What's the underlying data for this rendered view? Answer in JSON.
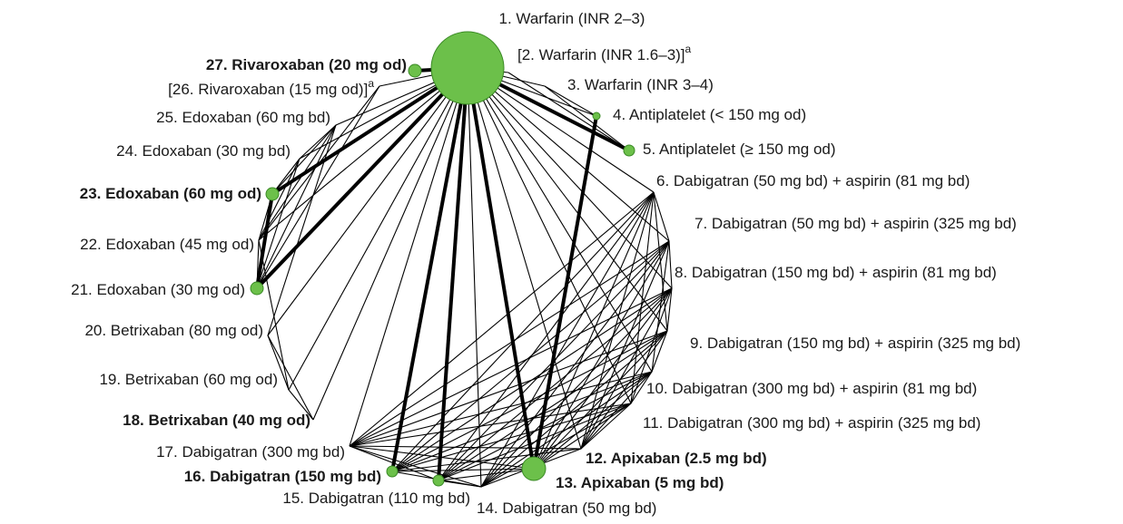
{
  "nodes": [
    {
      "label": "1. Warfarin (INR 2–3)"
    },
    {
      "label": "[2. Warfarin (INR 1.6–3)]",
      "superscript": "a"
    },
    {
      "label": "3. Warfarin (INR 3–4)"
    },
    {
      "label": "4. Antiplatelet (< 150 mg od)"
    },
    {
      "label": "5. Antiplatelet (≥ 150 mg od)"
    },
    {
      "label": "6. Dabigatran (50 mg bd) + aspirin (81 mg bd)"
    },
    {
      "label": "7. Dabigatran (50 mg bd) + aspirin (325 mg bd)"
    },
    {
      "label": "8. Dabigatran (150 mg bd) + aspirin (81 mg bd)"
    },
    {
      "label": "9. Dabigatran (150 mg bd) + aspirin (325 mg bd)"
    },
    {
      "label": "10. Dabigatran (300 mg bd) + aspirin (81 mg bd)"
    },
    {
      "label": "11. Dabigatran (300 mg bd) + aspirin (325 mg bd)"
    },
    {
      "label": "12. Apixaban (2.5 mg bd)",
      "bold": true
    },
    {
      "label": "13. Apixaban (5 mg bd)",
      "bold": true
    },
    {
      "label": "14. Dabigatran (50 mg bd)"
    },
    {
      "label": "15. Dabigatran (110 mg bd)"
    },
    {
      "label": "16. Dabigatran (150 mg bd)",
      "bold": true
    },
    {
      "label": "17. Dabigatran (300 mg bd)"
    },
    {
      "label": "18. Betrixaban (40 mg od)",
      "bold": true
    },
    {
      "label": "19. Betrixaban (60 mg od)"
    },
    {
      "label": "20. Betrixaban (80 mg od)"
    },
    {
      "label": "21. Edoxaban (30 mg od)"
    },
    {
      "label": "22. Edoxaban (45 mg od)"
    },
    {
      "label": "23. Edoxaban (60 mg od)",
      "bold": true
    },
    {
      "label": "24. Edoxaban (30 mg bd)"
    },
    {
      "label": "25. Edoxaban (60 mg bd)"
    },
    {
      "label": "[26. Rivaroxaban (15 mg od)]",
      "superscript": "a"
    },
    {
      "label": "27. Rivaroxaban (20 mg od)",
      "bold": true
    }
  ]
}
